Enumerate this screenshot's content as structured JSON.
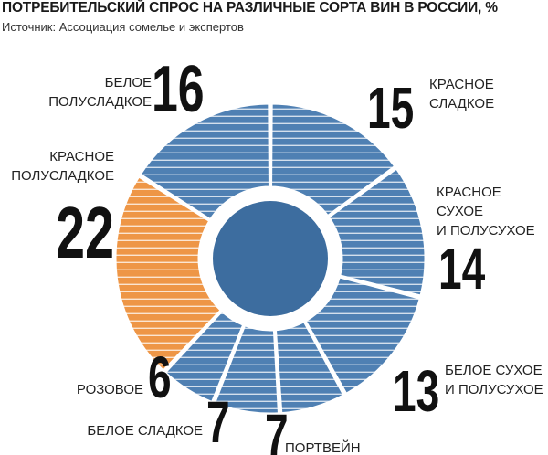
{
  "title": "ПОТРЕБИТЕЛЬСКИЙ СПРОС НА РАЗЛИЧНЫЕ СОРТА ВИН В РОССИИ, %",
  "source": "Источник: Ассоциация сомелье и экспертов",
  "colors": {
    "segment": "#4f80b3",
    "highlight": "#ee9646",
    "center": "#3d6d9f",
    "stripe": "#ffffff"
  },
  "chart_data": {
    "type": "pie",
    "title": "ПОТРЕБИТЕЛЬСКИЙ СПРОС НА РАЗЛИЧНЫЕ СОРТА ВИН В РОССИИ, %",
    "unit": "%",
    "slices": [
      {
        "label": "КРАСНОЕ СЛАДКОЕ",
        "lines": [
          "КРАСНОЕ",
          "СЛАДКОЕ"
        ],
        "value": 15,
        "value_label": "15",
        "highlight": false
      },
      {
        "label": "КРАСНОЕ СУХОЕ И ПОЛУСУХОЕ",
        "lines": [
          "КРАСНОЕ",
          "СУХОЕ",
          "И ПОЛУСУХОЕ"
        ],
        "value": 14,
        "value_label": "14",
        "highlight": false
      },
      {
        "label": "БЕЛОЕ СУХОЕ И ПОЛУСУХОЕ",
        "lines": [
          "БЕЛОЕ СУХОЕ",
          "И ПОЛУСУХОЕ"
        ],
        "value": 13,
        "value_label": "13",
        "highlight": false
      },
      {
        "label": "ПОРТВЕЙН",
        "lines": [
          "ПОРТВЕЙН"
        ],
        "value": 7,
        "value_label": "7",
        "highlight": false
      },
      {
        "label": "БЕЛОЕ СЛАДКОЕ",
        "lines": [
          "БЕЛОЕ СЛАДКОЕ"
        ],
        "value": 7,
        "value_label": "7",
        "highlight": false
      },
      {
        "label": "РОЗОВОЕ",
        "lines": [
          "РОЗОВОЕ"
        ],
        "value": 6,
        "value_label": "6",
        "highlight": false
      },
      {
        "label": "КРАСНОЕ ПОЛУСЛАДКОЕ",
        "lines": [
          "КРАСНОЕ",
          "ПОЛУСЛАДКОЕ"
        ],
        "value": 22,
        "value_label": "22",
        "highlight": true
      },
      {
        "label": "БЕЛОЕ ПОЛУСЛАДКОЕ",
        "lines": [
          "БЕЛОЕ",
          "ПОЛУСЛАДКОЕ"
        ],
        "value": 16,
        "value_label": "16",
        "highlight": false
      }
    ]
  }
}
